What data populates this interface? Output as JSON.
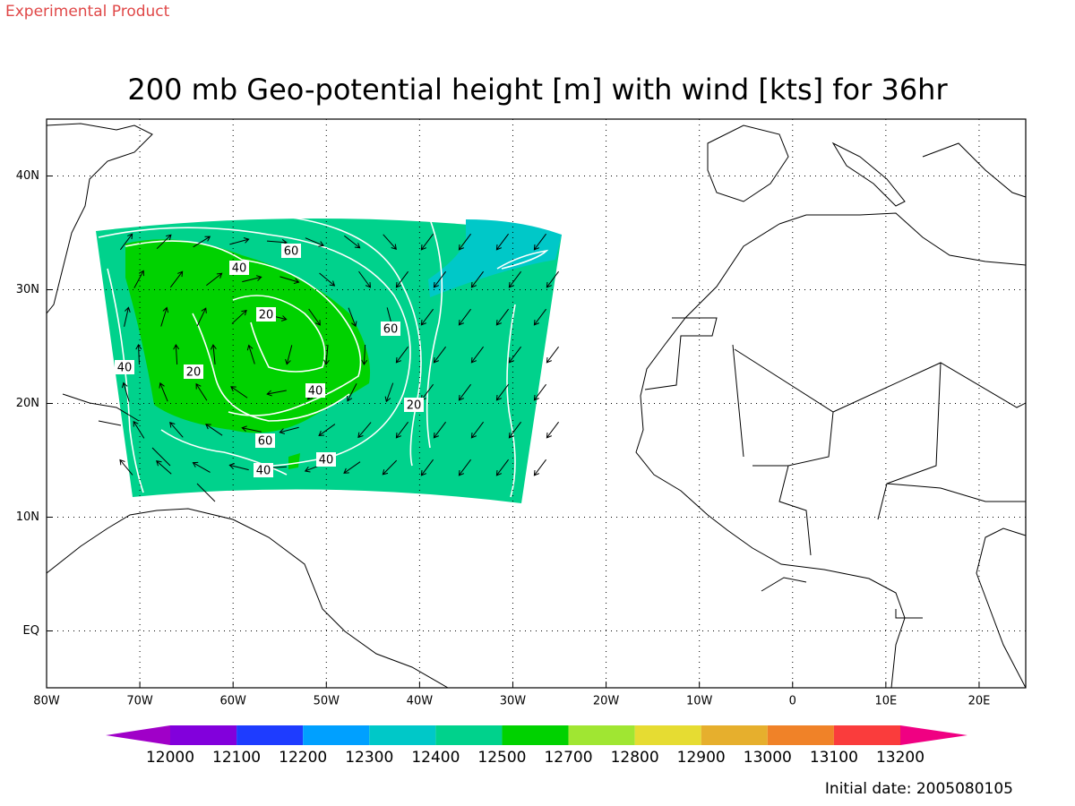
{
  "top_label": "Experimental Product",
  "footer": "Initial date: 2005080105",
  "chart_data": {
    "type": "map",
    "title": "200 mb Geo-potential height [m] with wind [kts] for 36hr",
    "xlim": [
      -80,
      25
    ],
    "xticks": [
      {
        "value": -80,
        "label": "80W"
      },
      {
        "value": -70,
        "label": "70W"
      },
      {
        "value": -60,
        "label": "60W"
      },
      {
        "value": -50,
        "label": "50W"
      },
      {
        "value": -40,
        "label": "40W"
      },
      {
        "value": -30,
        "label": "30W"
      },
      {
        "value": -20,
        "label": "20W"
      },
      {
        "value": -10,
        "label": "10W"
      },
      0,
      {
        "value": 10,
        "label": "10E"
      },
      {
        "value": 20,
        "label": "20E"
      }
    ],
    "ylim": [
      -5,
      45
    ],
    "yticks": [
      {
        "value": 0,
        "label": "EQ"
      },
      {
        "value": 10,
        "label": "10N"
      },
      {
        "value": 20,
        "label": "20N"
      },
      {
        "value": 30,
        "label": "30N"
      },
      {
        "value": 40,
        "label": "40N"
      }
    ],
    "grid": true,
    "colorbar": {
      "levels": [
        12000,
        12100,
        12200,
        12300,
        12400,
        12500,
        12700,
        12800,
        12900,
        13000,
        13100,
        13200
      ],
      "colors": [
        "#a000c8",
        "#8200dc",
        "#1e3cff",
        "#00a0ff",
        "#00c8c8",
        "#00d28c",
        "#00d200",
        "#a0e632",
        "#e6dc32",
        "#e6af2d",
        "#f08228",
        "#fa3c3c",
        "#f00082"
      ]
    },
    "contour_labels": [
      60,
      40,
      20,
      60,
      40,
      20,
      40,
      20,
      60,
      40,
      40
    ]
  }
}
